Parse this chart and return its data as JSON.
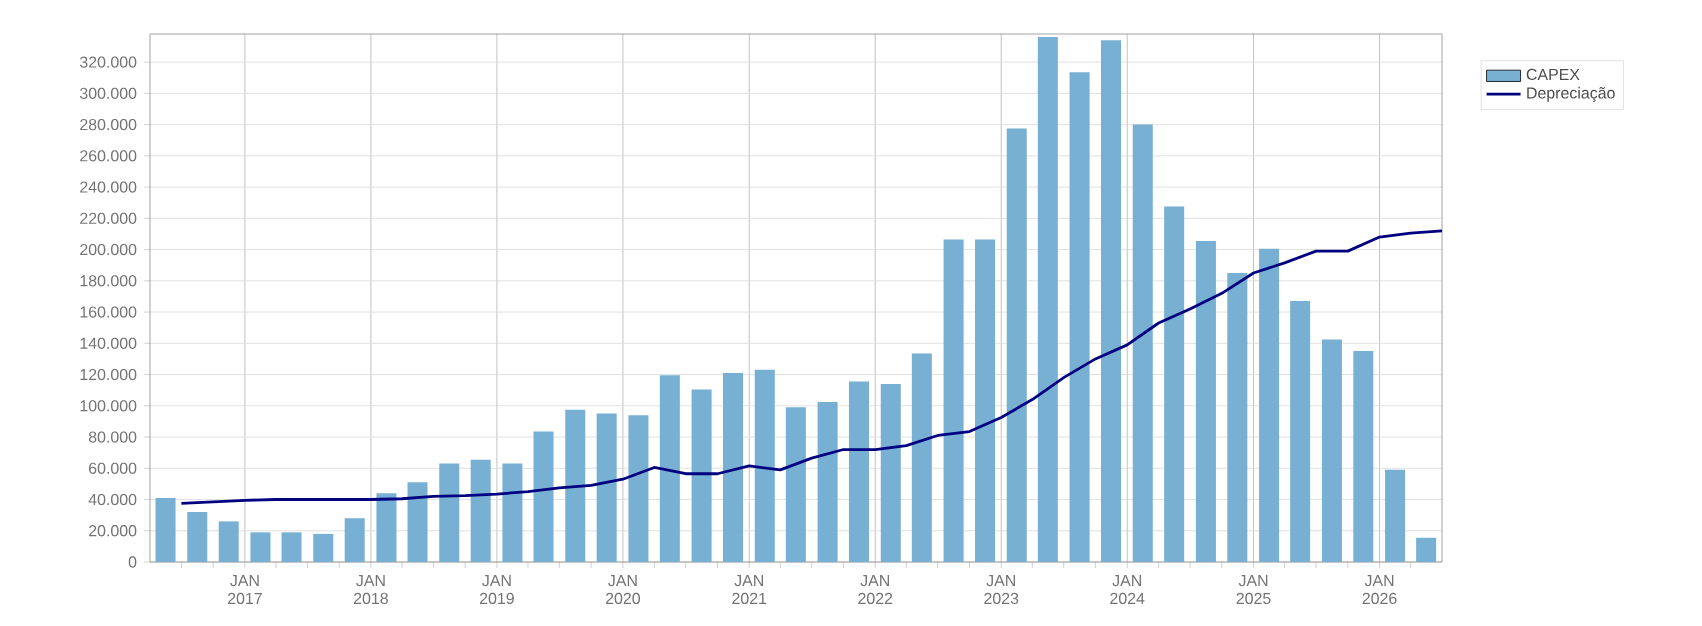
{
  "chart_data": {
    "type": "bar",
    "xlim": [
      "2016-04",
      "2026-07"
    ],
    "xticks": [
      {
        "value": "2016-07",
        "label": null
      },
      {
        "value": "2016-10",
        "label": null
      },
      {
        "value": "2017-01",
        "label": "JAN 2017"
      },
      {
        "value": "2017-04",
        "label": null
      },
      {
        "value": "2017-07",
        "label": null
      },
      {
        "value": "2017-10",
        "label": null
      },
      {
        "value": "2018-01",
        "label": "JAN 2018"
      },
      {
        "value": "2018-04",
        "label": null
      },
      {
        "value": "2018-07",
        "label": null
      },
      {
        "value": "2018-10",
        "label": null
      },
      {
        "value": "2019-01",
        "label": "JAN 2019"
      },
      {
        "value": "2019-04",
        "label": null
      },
      {
        "value": "2019-07",
        "label": null
      },
      {
        "value": "2019-10",
        "label": null
      },
      {
        "value": "2020-01",
        "label": "JAN 2020"
      },
      {
        "value": "2020-04",
        "label": null
      },
      {
        "value": "2020-07",
        "label": null
      },
      {
        "value": "2020-10",
        "label": null
      },
      {
        "value": "2021-01",
        "label": "JAN 2021"
      },
      {
        "value": "2021-04",
        "label": null
      },
      {
        "value": "2021-07",
        "label": null
      },
      {
        "value": "2021-10",
        "label": null
      },
      {
        "value": "2022-01",
        "label": "JAN 2022"
      },
      {
        "value": "2022-04",
        "label": null
      },
      {
        "value": "2022-07",
        "label": null
      },
      {
        "value": "2022-10",
        "label": null
      },
      {
        "value": "2023-01",
        "label": "JAN 2023"
      },
      {
        "value": "2023-04",
        "label": null
      },
      {
        "value": "2023-07",
        "label": null
      },
      {
        "value": "2023-10",
        "label": null
      },
      {
        "value": "2024-01",
        "label": "JAN 2024"
      },
      {
        "value": "2024-04",
        "label": null
      },
      {
        "value": "2024-07",
        "label": null
      },
      {
        "value": "2024-10",
        "label": null
      },
      {
        "value": "2025-01",
        "label": "JAN 2025"
      },
      {
        "value": "2025-04",
        "label": null
      },
      {
        "value": "2025-07",
        "label": null
      },
      {
        "value": "2025-10",
        "label": null
      },
      {
        "value": "2026-01",
        "label": "JAN 2026"
      },
      {
        "value": "2026-04",
        "label": null
      }
    ],
    "ylim": [
      0,
      338000
    ],
    "yticks": [
      0,
      {
        "value": 20000,
        "label": "20.000"
      },
      {
        "value": 40000,
        "label": "40.000"
      },
      {
        "value": 60000,
        "label": "60.000"
      },
      {
        "value": 80000,
        "label": "80.000"
      },
      {
        "value": 100000,
        "label": "100.000"
      },
      {
        "value": 120000,
        "label": "120.000"
      },
      {
        "value": 140000,
        "label": "140.000"
      },
      {
        "value": 160000,
        "label": "160.000"
      },
      {
        "value": 180000,
        "label": "180.000"
      },
      {
        "value": 200000,
        "label": "200.000"
      },
      {
        "value": 220000,
        "label": "220.000"
      },
      {
        "value": 240000,
        "label": "240.000"
      },
      {
        "value": 260000,
        "label": "260.000"
      },
      {
        "value": 280000,
        "label": "280.000"
      },
      {
        "value": 300000,
        "label": "300.000"
      },
      {
        "value": 320000,
        "label": "320.000"
      }
    ],
    "grid": true,
    "legend": "top right",
    "series": [
      {
        "name": "CAPEX",
        "color": "#77b0d2",
        "x": [
          "2016-05-16",
          "2016-08-16",
          "2016-11-15",
          "2017-02-15",
          "2017-05-16",
          "2017-08-16",
          "2017-11-15",
          "2018-02-15",
          "2018-05-16",
          "2018-08-16",
          "2018-11-15",
          "2019-02-15",
          "2019-05-16",
          "2019-08-16",
          "2019-11-15",
          "2020-02-15",
          "2020-05-16",
          "2020-08-16",
          "2020-11-15",
          "2021-02-15",
          "2021-05-16",
          "2021-08-16",
          "2021-11-15",
          "2022-02-15",
          "2022-05-16",
          "2022-08-16",
          "2022-11-15",
          "2023-02-15",
          "2023-05-16",
          "2023-08-16",
          "2023-11-15",
          "2024-02-15",
          "2024-05-16",
          "2024-08-16",
          "2024-11-15",
          "2025-02-15",
          "2025-05-16",
          "2025-08-16",
          "2025-11-15",
          "2026-02-15",
          "2026-05-16"
        ],
        "values": [
          41000,
          32000,
          26000,
          19000,
          19000,
          18000,
          28000,
          44000,
          51000,
          63000,
          65500,
          63000,
          83500,
          97500,
          95000,
          94000,
          119500,
          110500,
          121000,
          123000,
          99000,
          102500,
          115500,
          114000,
          133500,
          206500,
          206500,
          277500,
          336000,
          313500,
          334000,
          280000,
          227500,
          205500,
          185000,
          200500,
          167000,
          142500,
          135000,
          59000,
          15500
        ]
      },
      {
        "name": "Depreciação",
        "type": "line",
        "color": "#000080",
        "x": [
          "2016-07",
          "2016-10",
          "2017-01",
          "2017-04",
          "2017-07",
          "2017-10",
          "2018-01",
          "2018-04",
          "2018-07",
          "2018-10",
          "2019-01",
          "2019-04",
          "2019-07",
          "2019-10",
          "2020-01",
          "2020-04",
          "2020-07",
          "2020-10",
          "2021-01",
          "2021-04",
          "2021-07",
          "2021-10",
          "2022-01",
          "2022-04",
          "2022-07",
          "2022-10",
          "2023-01",
          "2023-04",
          "2023-07",
          "2023-10",
          "2024-01",
          "2024-04",
          "2024-07",
          "2024-10",
          "2025-01",
          "2025-04",
          "2025-07",
          "2025-10",
          "2026-01",
          "2026-04",
          "2026-07"
        ],
        "values": [
          37500,
          38500,
          39500,
          40000,
          40000,
          40000,
          40000,
          40500,
          42000,
          42500,
          43500,
          45000,
          47500,
          49000,
          53000,
          60500,
          56500,
          56500,
          61500,
          59000,
          66500,
          72000,
          72000,
          74500,
          81000,
          83500,
          92500,
          104000,
          118000,
          130000,
          139000,
          153000,
          162000,
          172000,
          185000,
          191500,
          199000,
          199000,
          208000,
          210500,
          212000
        ]
      }
    ]
  }
}
